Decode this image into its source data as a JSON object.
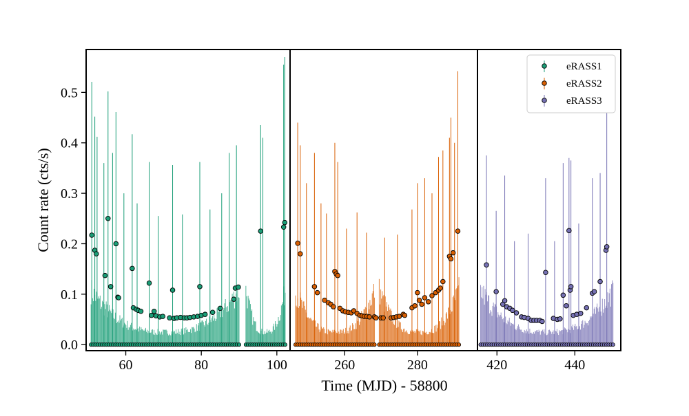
{
  "chart_data": {
    "type": "scatter",
    "xlabel": "Time (MJD) - 58800",
    "ylabel": "Count rate (cts/s)",
    "ylim": [
      -0.012,
      0.585
    ],
    "yticks": [
      0.0,
      0.1,
      0.2,
      0.3,
      0.4,
      0.5
    ],
    "legend_placement": "top-right",
    "panels": [
      {
        "name": "eRASS1",
        "color": "#1b9e77",
        "xlim": [
          49.5,
          103.5
        ],
        "xticks": [
          60,
          80,
          100
        ],
        "mid_points": [
          [
            51.0,
            0.217
          ],
          [
            51.8,
            0.187
          ],
          [
            52.2,
            0.18
          ],
          [
            54.5,
            0.137
          ],
          [
            55.3,
            0.25
          ],
          [
            56.0,
            0.115
          ],
          [
            57.4,
            0.2
          ],
          [
            57.9,
            0.094
          ],
          [
            58.1,
            0.093
          ],
          [
            61.7,
            0.151
          ],
          [
            62.0,
            0.073
          ],
          [
            62.8,
            0.07
          ],
          [
            63.3,
            0.068
          ],
          [
            64.0,
            0.066
          ],
          [
            66.2,
            0.122
          ],
          [
            66.8,
            0.058
          ],
          [
            67.5,
            0.066
          ],
          [
            68.0,
            0.057
          ],
          [
            69.0,
            0.055
          ],
          [
            69.8,
            0.056
          ],
          [
            71.6,
            0.053
          ],
          [
            72.4,
            0.108
          ],
          [
            72.8,
            0.052
          ],
          [
            73.5,
            0.053
          ],
          [
            74.5,
            0.054
          ],
          [
            75.5,
            0.053
          ],
          [
            76.2,
            0.053
          ],
          [
            77.0,
            0.054
          ],
          [
            78.0,
            0.055
          ],
          [
            79.0,
            0.056
          ],
          [
            79.6,
            0.115
          ],
          [
            80.0,
            0.058
          ],
          [
            81.0,
            0.06
          ],
          [
            83.0,
            0.064
          ],
          [
            85.0,
            0.072
          ],
          [
            88.6,
            0.09
          ],
          [
            89.0,
            0.112
          ],
          [
            89.8,
            0.114
          ],
          [
            95.7,
            0.225
          ],
          [
            101.8,
            0.233
          ],
          [
            102.1,
            0.242
          ]
        ],
        "spikes": [
          [
            51.0,
            0.521
          ],
          [
            51.8,
            0.452
          ],
          [
            52.4,
            0.412
          ],
          [
            54.2,
            0.36
          ],
          [
            55.3,
            0.502
          ],
          [
            56.5,
            0.38
          ],
          [
            57.4,
            0.461
          ],
          [
            59.5,
            0.3
          ],
          [
            61.7,
            0.417
          ],
          [
            63.0,
            0.28
          ],
          [
            66.2,
            0.362
          ],
          [
            68.6,
            0.255
          ],
          [
            72.4,
            0.356
          ],
          [
            75.0,
            0.258
          ],
          [
            79.6,
            0.362
          ],
          [
            82.3,
            0.268
          ],
          [
            85.4,
            0.3
          ],
          [
            87.4,
            0.38
          ],
          [
            89.3,
            0.395
          ],
          [
            95.7,
            0.435
          ],
          [
            96.3,
            0.41
          ],
          [
            101.8,
            0.555
          ],
          [
            102.1,
            0.57
          ]
        ],
        "segments": [
          [
            50.8,
            90.0
          ],
          [
            91.8,
            102.2
          ]
        ]
      },
      {
        "name": "eRASS2",
        "color": "#d95f02",
        "xlim": [
          245.0,
          296.5
        ],
        "xticks": [
          260,
          280
        ],
        "mid_points": [
          [
            247.1,
            0.201
          ],
          [
            247.8,
            0.18
          ],
          [
            251.7,
            0.115
          ],
          [
            252.5,
            0.103
          ],
          [
            254.5,
            0.088
          ],
          [
            255.5,
            0.083
          ],
          [
            256.2,
            0.08
          ],
          [
            256.9,
            0.075
          ],
          [
            257.3,
            0.145
          ],
          [
            257.7,
            0.14
          ],
          [
            258.1,
            0.137
          ],
          [
            258.7,
            0.072
          ],
          [
            259.5,
            0.067
          ],
          [
            260.2,
            0.065
          ],
          [
            261.0,
            0.064
          ],
          [
            261.8,
            0.063
          ],
          [
            262.5,
            0.067
          ],
          [
            263.4,
            0.062
          ],
          [
            264.2,
            0.058
          ],
          [
            264.8,
            0.057
          ],
          [
            265.4,
            0.056
          ],
          [
            266.1,
            0.056
          ],
          [
            266.8,
            0.055
          ],
          [
            268.2,
            0.055
          ],
          [
            268.6,
            0.053
          ],
          [
            270.0,
            0.053
          ],
          [
            270.6,
            0.053
          ],
          [
            272.8,
            0.053
          ],
          [
            273.5,
            0.054
          ],
          [
            274.2,
            0.055
          ],
          [
            275.0,
            0.056
          ],
          [
            276.1,
            0.06
          ],
          [
            276.5,
            0.058
          ],
          [
            278.5,
            0.073
          ],
          [
            279.3,
            0.077
          ],
          [
            280.0,
            0.103
          ],
          [
            280.5,
            0.088
          ],
          [
            281.2,
            0.08
          ],
          [
            282.0,
            0.093
          ],
          [
            283.0,
            0.085
          ],
          [
            284.0,
            0.097
          ],
          [
            285.0,
            0.103
          ],
          [
            285.8,
            0.108
          ],
          [
            286.3,
            0.112
          ],
          [
            287.0,
            0.125
          ],
          [
            288.8,
            0.175
          ],
          [
            289.2,
            0.17
          ],
          [
            289.8,
            0.182
          ],
          [
            291.1,
            0.225
          ]
        ],
        "spikes": [
          [
            247.1,
            0.44
          ],
          [
            247.8,
            0.395
          ],
          [
            249.5,
            0.32
          ],
          [
            251.7,
            0.38
          ],
          [
            253.5,
            0.28
          ],
          [
            255.0,
            0.26
          ],
          [
            257.3,
            0.4
          ],
          [
            258.1,
            0.362
          ],
          [
            260.5,
            0.23
          ],
          [
            263.4,
            0.262
          ],
          [
            266.0,
            0.222
          ],
          [
            271.0,
            0.212
          ],
          [
            274.5,
            0.218
          ],
          [
            278.5,
            0.268
          ],
          [
            280.0,
            0.32
          ],
          [
            282.0,
            0.33
          ],
          [
            284.0,
            0.3
          ],
          [
            285.8,
            0.372
          ],
          [
            287.0,
            0.385
          ],
          [
            288.8,
            0.41
          ],
          [
            289.2,
            0.45
          ],
          [
            290.2,
            0.4
          ],
          [
            291.1,
            0.542
          ]
        ],
        "segments": [
          [
            246.5,
            268.2
          ],
          [
            269.5,
            291.4
          ]
        ]
      },
      {
        "name": "eRASS3",
        "color": "#7570b3",
        "xlim": [
          415.0,
          451.8
        ],
        "xticks": [
          420,
          440
        ],
        "mid_points": [
          [
            417.3,
            0.158
          ],
          [
            419.8,
            0.105
          ],
          [
            422.0,
            0.087
          ],
          [
            421.5,
            0.08
          ],
          [
            422.5,
            0.075
          ],
          [
            423.3,
            0.072
          ],
          [
            424.0,
            0.068
          ],
          [
            425.0,
            0.063
          ],
          [
            426.3,
            0.055
          ],
          [
            427.0,
            0.054
          ],
          [
            428.0,
            0.052
          ],
          [
            428.8,
            0.048
          ],
          [
            429.5,
            0.048
          ],
          [
            430.2,
            0.048
          ],
          [
            431.0,
            0.048
          ],
          [
            431.6,
            0.046
          ],
          [
            432.5,
            0.143
          ],
          [
            434.5,
            0.052
          ],
          [
            435.5,
            0.05
          ],
          [
            436.2,
            0.051
          ],
          [
            437.0,
            0.098
          ],
          [
            437.8,
            0.077
          ],
          [
            438.5,
            0.226
          ],
          [
            438.8,
            0.108
          ],
          [
            439.0,
            0.115
          ],
          [
            439.6,
            0.058
          ],
          [
            440.5,
            0.06
          ],
          [
            441.5,
            0.062
          ],
          [
            443.0,
            0.073
          ],
          [
            444.5,
            0.102
          ],
          [
            445.0,
            0.105
          ],
          [
            446.5,
            0.125
          ],
          [
            448.0,
            0.187
          ],
          [
            448.2,
            0.194
          ]
        ],
        "spikes": [
          [
            417.3,
            0.375
          ],
          [
            419.8,
            0.265
          ],
          [
            422.0,
            0.335
          ],
          [
            424.5,
            0.205
          ],
          [
            428.0,
            0.22
          ],
          [
            432.5,
            0.33
          ],
          [
            434.8,
            0.205
          ],
          [
            437.0,
            0.36
          ],
          [
            438.5,
            0.37
          ],
          [
            439.0,
            0.365
          ],
          [
            441.0,
            0.24
          ],
          [
            444.5,
            0.33
          ],
          [
            446.5,
            0.34
          ],
          [
            448.2,
            0.46
          ]
        ],
        "segments": [
          [
            415.8,
            449.8
          ]
        ]
      }
    ]
  }
}
